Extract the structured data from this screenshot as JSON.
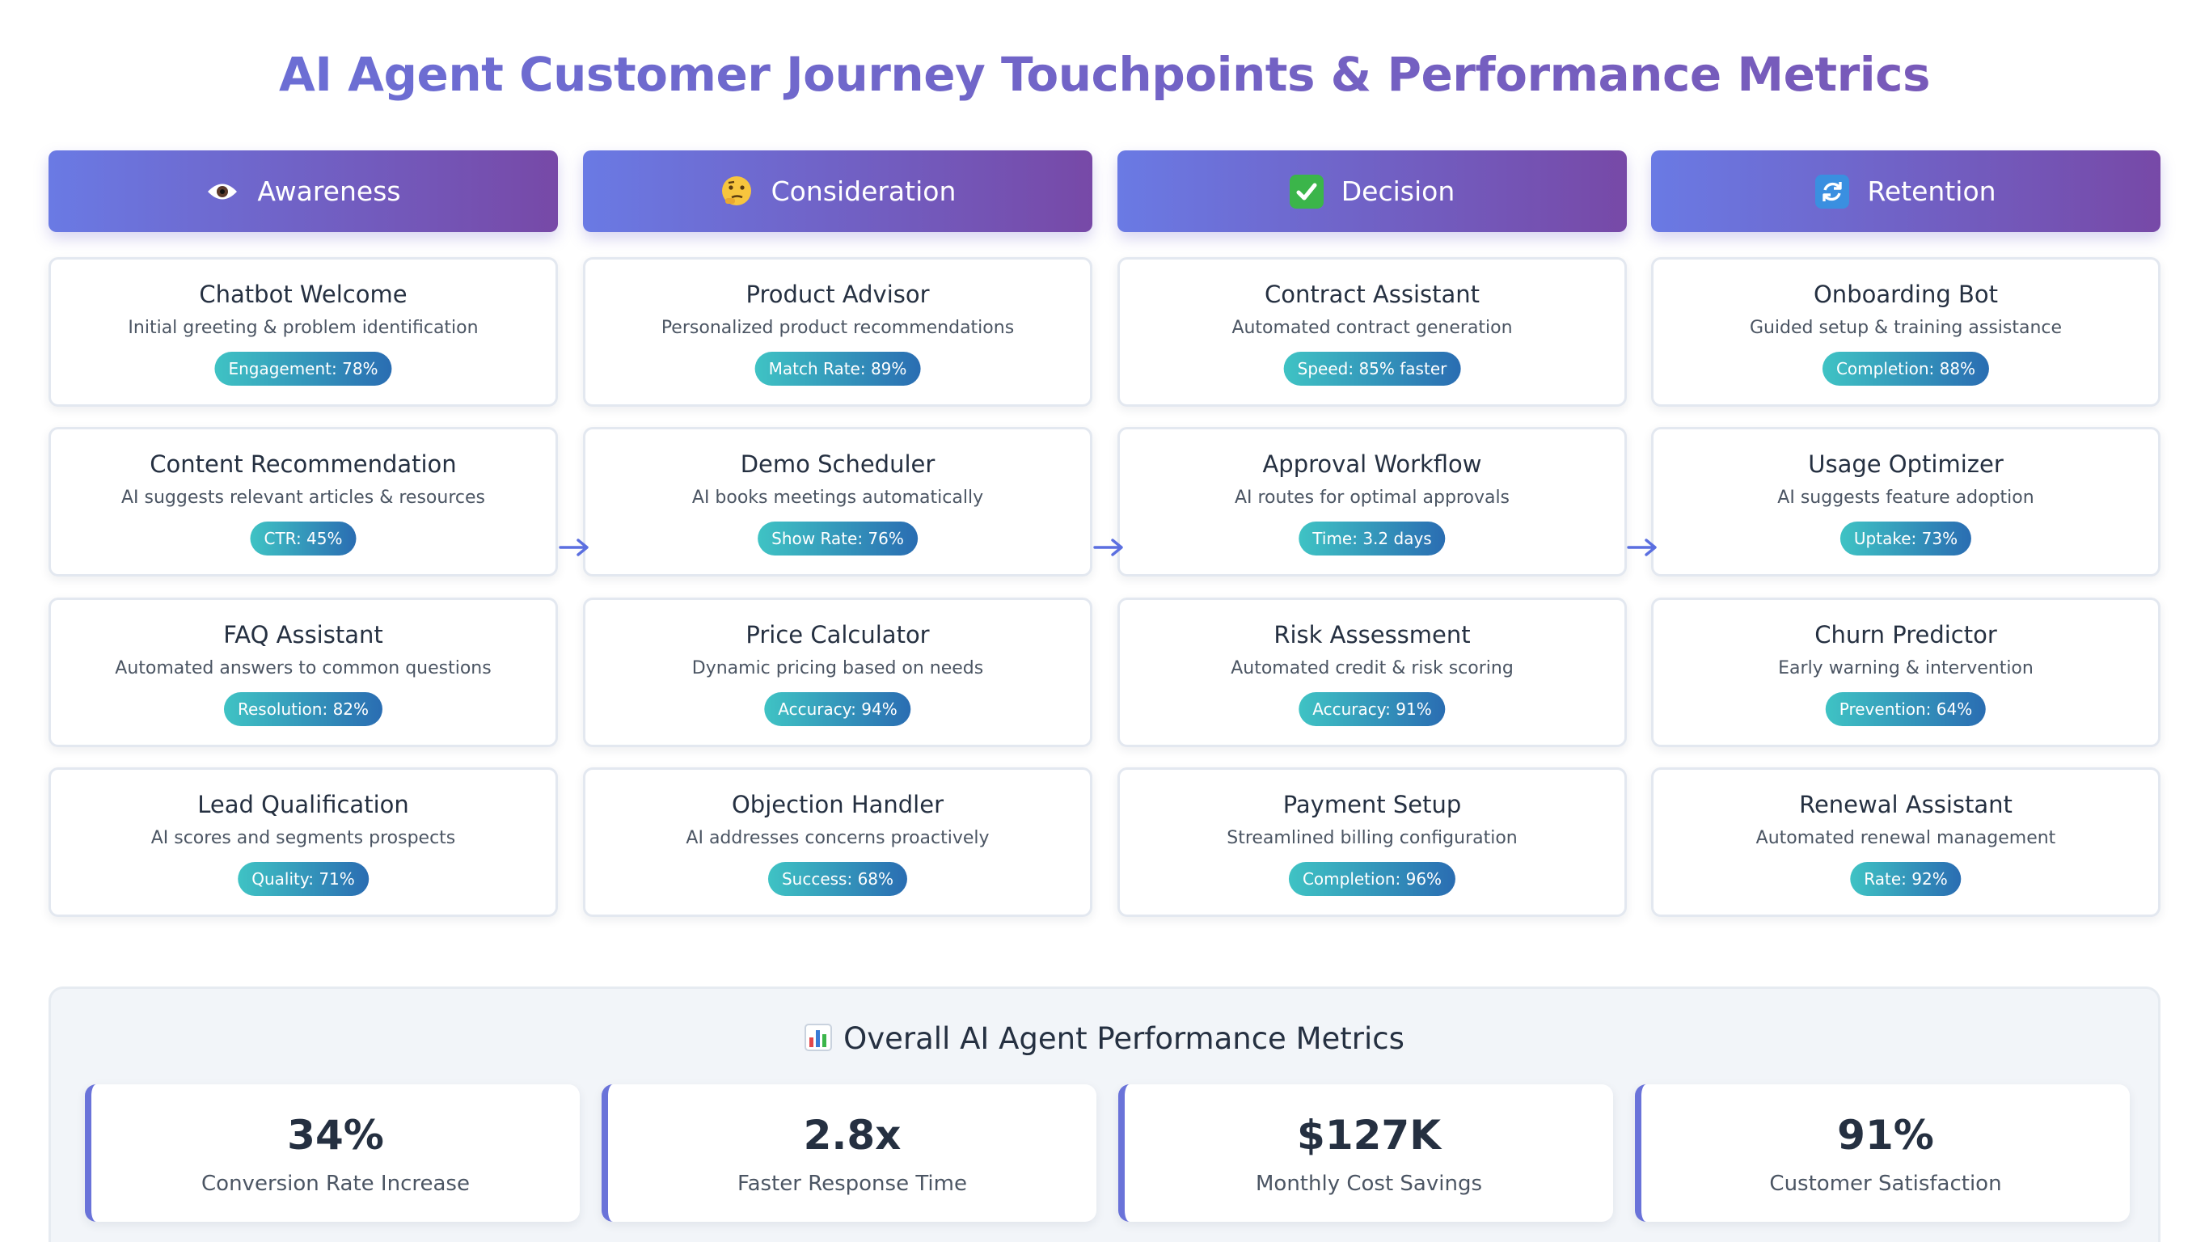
{
  "page_title": "AI Agent Customer Journey Touchpoints & Performance Metrics",
  "stages": [
    {
      "name": "Awareness",
      "icon": "eye-icon",
      "cards": [
        {
          "title": "Chatbot Welcome",
          "desc": "Initial greeting & problem identification",
          "metric": "Engagement: 78%"
        },
        {
          "title": "Content Recommendation",
          "desc": "AI suggests relevant articles & resources",
          "metric": "CTR: 45%"
        },
        {
          "title": "FAQ Assistant",
          "desc": "Automated answers to common questions",
          "metric": "Resolution: 82%"
        },
        {
          "title": "Lead Qualification",
          "desc": "AI scores and segments prospects",
          "metric": "Quality: 71%"
        }
      ]
    },
    {
      "name": "Consideration",
      "icon": "thinking-face-icon",
      "cards": [
        {
          "title": "Product Advisor",
          "desc": "Personalized product recommendations",
          "metric": "Match Rate: 89%"
        },
        {
          "title": "Demo Scheduler",
          "desc": "AI books meetings automatically",
          "metric": "Show Rate: 76%"
        },
        {
          "title": "Price Calculator",
          "desc": "Dynamic pricing based on needs",
          "metric": "Accuracy: 94%"
        },
        {
          "title": "Objection Handler",
          "desc": "AI addresses concerns proactively",
          "metric": "Success: 68%"
        }
      ]
    },
    {
      "name": "Decision",
      "icon": "check-mark-icon",
      "cards": [
        {
          "title": "Contract Assistant",
          "desc": "Automated contract generation",
          "metric": "Speed: 85% faster"
        },
        {
          "title": "Approval Workflow",
          "desc": "AI routes for optimal approvals",
          "metric": "Time: 3.2 days"
        },
        {
          "title": "Risk Assessment",
          "desc": "Automated credit & risk scoring",
          "metric": "Accuracy: 91%"
        },
        {
          "title": "Payment Setup",
          "desc": "Streamlined billing configuration",
          "metric": "Completion: 96%"
        }
      ]
    },
    {
      "name": "Retention",
      "icon": "refresh-icon",
      "cards": [
        {
          "title": "Onboarding Bot",
          "desc": "Guided setup & training assistance",
          "metric": "Completion: 88%"
        },
        {
          "title": "Usage Optimizer",
          "desc": "AI suggests feature adoption",
          "metric": "Uptake: 73%"
        },
        {
          "title": "Churn Predictor",
          "desc": "Early warning & intervention",
          "metric": "Prevention: 64%"
        },
        {
          "title": "Renewal Assistant",
          "desc": "Automated renewal management",
          "metric": "Rate: 92%"
        }
      ]
    }
  ],
  "overall": {
    "title": "Overall AI Agent Performance Metrics",
    "icon": "bar-chart-icon",
    "metrics": [
      {
        "value": "34%",
        "label": "Conversion Rate Increase"
      },
      {
        "value": "2.8x",
        "label": "Faster Response Time"
      },
      {
        "value": "$127K",
        "label": "Monthly Cost Savings"
      },
      {
        "value": "91%",
        "label": "Customer Satisfaction"
      }
    ]
  },
  "colors": {
    "title_gradient": [
      "#6a72d9",
      "#7a56b4"
    ],
    "header_gradient": [
      "#6a7ae4",
      "#7749a7"
    ],
    "badge_gradient": [
      "#3fc3c4",
      "#2a6db2"
    ],
    "arrow": "#5b6fe0"
  }
}
